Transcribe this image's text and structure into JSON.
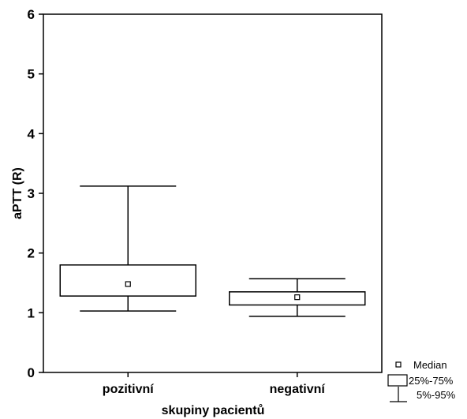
{
  "chart_data": {
    "type": "boxplot",
    "xlabel": "skupiny pacientů",
    "ylabel": "aPTT (R)",
    "ylim": [
      0,
      6
    ],
    "yticks": [
      "0",
      "1",
      "2",
      "3",
      "4",
      "5",
      "6"
    ],
    "categories": [
      "pozitivní",
      "negativní"
    ],
    "boxes": [
      {
        "category": "pozitivní",
        "p5": 1.03,
        "q1": 1.28,
        "median": 1.48,
        "q3": 1.8,
        "p95": 3.12
      },
      {
        "category": "negativní",
        "p5": 0.94,
        "q1": 1.13,
        "median": 1.26,
        "q3": 1.35,
        "p95": 1.57
      }
    ],
    "legend": {
      "position": "bottom-right",
      "entries": [
        {
          "symbol": "median-square",
          "label": "Median"
        },
        {
          "symbol": "box",
          "label": "25%-75%"
        },
        {
          "symbol": "whisker",
          "label": "5%-95%"
        }
      ]
    },
    "grid": false
  }
}
